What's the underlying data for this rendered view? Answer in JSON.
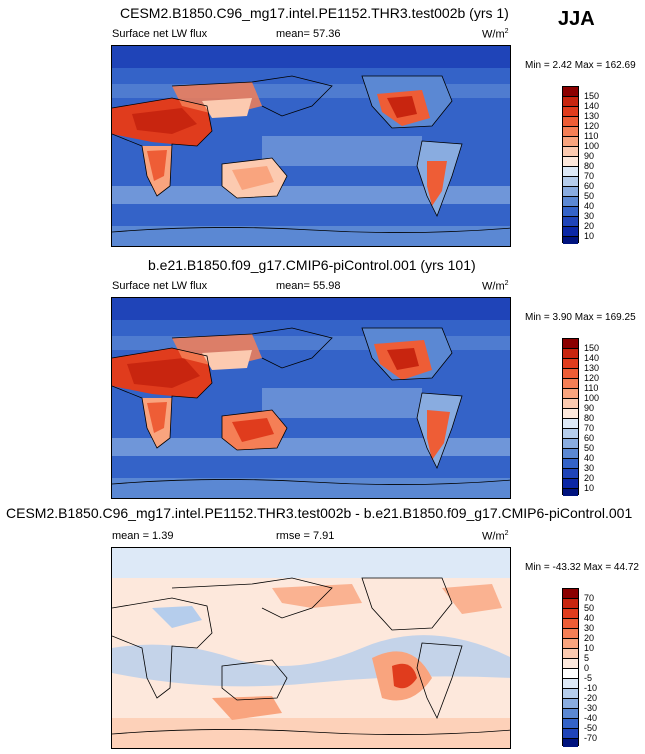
{
  "season": "JJA",
  "panels": [
    {
      "title": "CESM2.B1850.C96_mg17.intel.PE1152.THR3.test002b (yrs 1)",
      "left_label": "Surface net LW flux",
      "mid_label": "mean=  57.36",
      "units": "W/m",
      "units_sup": "2",
      "minmax": "Min =   2.42 Max = 162.69",
      "colorbar_labels": [
        "150",
        "140",
        "130",
        "120",
        "110",
        "100",
        "90",
        "80",
        "70",
        "60",
        "50",
        "40",
        "30",
        "20",
        "10"
      ]
    },
    {
      "title": "b.e21.B1850.f09_g17.CMIP6-piControl.001 (yrs 101)",
      "left_label": "Surface net LW flux",
      "mid_label": "mean=  55.98",
      "units": "W/m",
      "units_sup": "2",
      "minmax": "Min =   3.90 Max = 169.25",
      "colorbar_labels": [
        "150",
        "140",
        "130",
        "120",
        "110",
        "100",
        "90",
        "80",
        "70",
        "60",
        "50",
        "40",
        "30",
        "20",
        "10"
      ]
    },
    {
      "title": "CESM2.B1850.C96_mg17.intel.PE1152.THR3.test002b - b.e21.B1850.f09_g17.CMIP6-piControl.001",
      "left_label": "mean =  1.39",
      "mid_label": "rmse =  7.91",
      "units": "W/m",
      "units_sup": "2",
      "minmax": "Min = -43.32 Max =  44.72",
      "colorbar_labels": [
        "70",
        "50",
        "40",
        "30",
        "20",
        "10",
        "5",
        "0",
        "-5",
        "-10",
        "-20",
        "-30",
        "-40",
        "-50",
        "-70"
      ]
    }
  ],
  "colors": {
    "abs_scale": [
      "#8b0000",
      "#c8250f",
      "#e03c1d",
      "#ee5d36",
      "#f57f56",
      "#f9a47e",
      "#fccab0",
      "#fde8dc",
      "#dde9f7",
      "#b5cdec",
      "#89ace0",
      "#5b88d3",
      "#3463c8",
      "#1f44b8",
      "#0b27a5",
      "#00137e"
    ],
    "diff_scale": [
      "#8b0000",
      "#c8250f",
      "#e03c1d",
      "#ee5d36",
      "#f57f56",
      "#f9a47e",
      "#fccab0",
      "#fde8dc",
      "#ffffff",
      "#dde9f7",
      "#b5cdec",
      "#89ace0",
      "#5b88d3",
      "#3463c8",
      "#1f44b8",
      "#00137e"
    ]
  }
}
